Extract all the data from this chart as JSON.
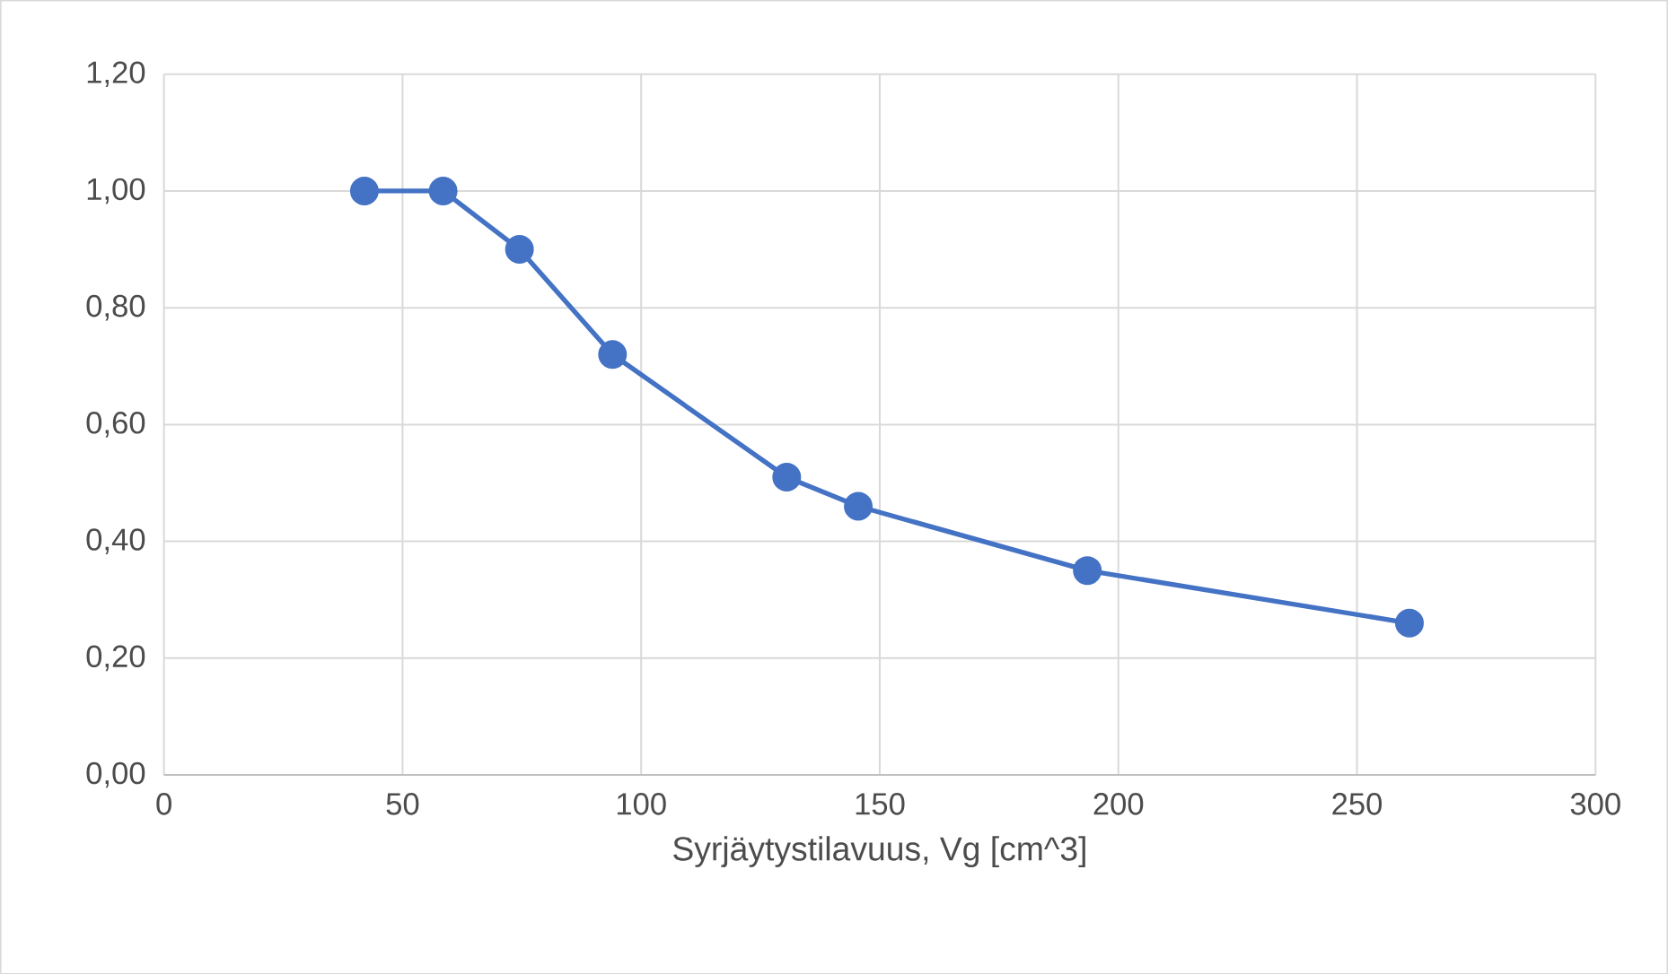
{
  "chart_data": {
    "type": "line",
    "xlabel": "Syrjäytystilavuus, Vg [cm^3]",
    "x": [
      42,
      58.5,
      74.5,
      94,
      130.5,
      145.5,
      193.5,
      261
    ],
    "series": [
      {
        "color": "#4472c4",
        "values": [
          1.0,
          1.0,
          0.9,
          0.72,
          0.51,
          0.46,
          0.35,
          0.26
        ]
      }
    ],
    "xlim": [
      0,
      300
    ],
    "xticks": [
      0,
      50,
      100,
      150,
      200,
      250,
      300
    ],
    "ylim": [
      0,
      1.2
    ],
    "yticks": [
      {
        "value": 0,
        "label": "0,00"
      },
      {
        "value": 0.2,
        "label": "0,20"
      },
      {
        "value": 0.4,
        "label": "0,40"
      },
      {
        "value": 0.6,
        "label": "0,60"
      },
      {
        "value": 0.8,
        "label": "0,80"
      },
      {
        "value": 1.0,
        "label": "1,00"
      },
      {
        "value": 1.2,
        "label": "1,20"
      }
    ],
    "grid": true,
    "marker": "circle",
    "line_style": "solid"
  }
}
